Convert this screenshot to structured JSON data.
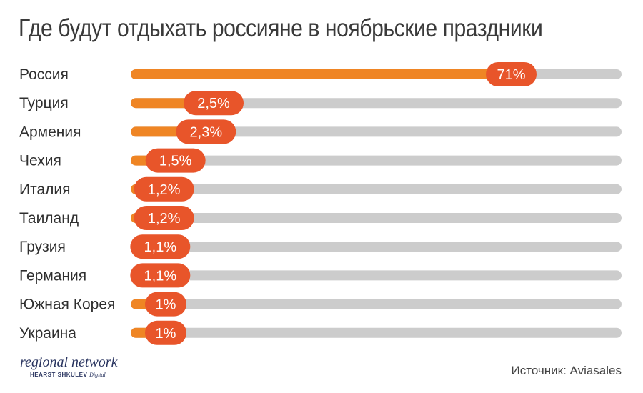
{
  "title": "Где будут отдыхать россияне в ноябрьские праздники",
  "source": "Источник: Aviasales",
  "logo": {
    "main": "regional network",
    "publisher": "HEARST SHKULEV",
    "publisher_suffix": "Digital"
  },
  "colors": {
    "bar": "#ef8524",
    "track": "#cccccc",
    "badge": "#e8552a",
    "label_text": "#2f2f2f",
    "badge_text": "#ffffff"
  },
  "chart_data": {
    "type": "bar",
    "orientation": "horizontal",
    "title": "Где будут отдыхать россияне в ноябрьские праздники",
    "unit": "%",
    "categories": [
      "Россия",
      "Турция",
      "Армения",
      "Чехия",
      "Италия",
      "Таиланд",
      "Грузия",
      "Германия",
      "Южная Корея",
      "Украина"
    ],
    "values": [
      71,
      2.5,
      2.3,
      1.5,
      1.2,
      1.2,
      1.1,
      1.1,
      1,
      1
    ],
    "value_labels": [
      "71%",
      "2,5%",
      "2,3%",
      "1,5%",
      "1,2%",
      "1,2%",
      "1,1%",
      "1,1%",
      "1%",
      "1%"
    ]
  }
}
